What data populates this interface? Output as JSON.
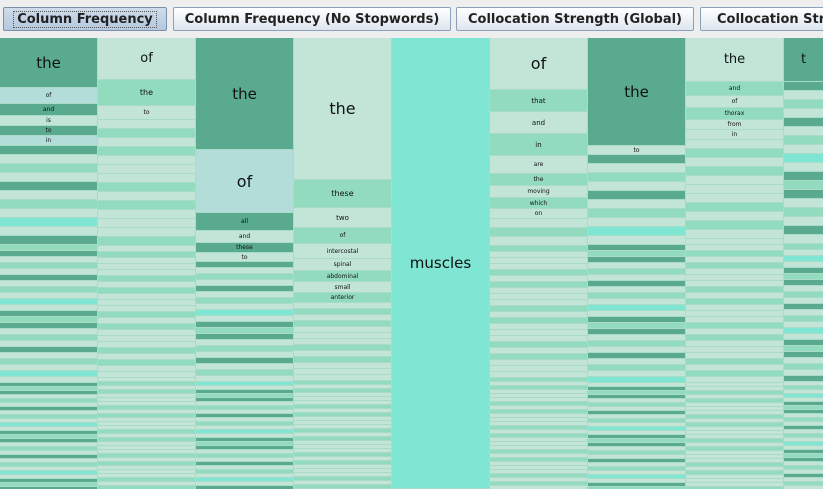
{
  "tabs": [
    {
      "label": "Column Frequency",
      "active": true
    },
    {
      "label": "Column Frequency (No Stopwords)",
      "active": false
    },
    {
      "label": "Collocation Strength (Global)",
      "active": false
    },
    {
      "label": "Collocation Stre",
      "active": false
    }
  ],
  "columns": [
    {
      "words": [
        "the",
        "of",
        "and",
        "is",
        "to",
        "in"
      ],
      "weights": [
        50,
        16,
        12,
        10,
        10,
        10
      ]
    },
    {
      "words": [
        "of",
        "the",
        "to"
      ],
      "weights": [
        42,
        26,
        14
      ]
    },
    {
      "words": [
        "the",
        "of",
        "all",
        "and",
        "these",
        "to"
      ],
      "weights": [
        112,
        63,
        18,
        12,
        10,
        9
      ]
    },
    {
      "words": [
        "the",
        "these",
        "two",
        "of",
        "intercostal",
        "spinal",
        "abdominal",
        "small",
        "anterior"
      ],
      "weights": [
        142,
        28,
        20,
        16,
        15,
        12,
        11,
        11,
        10
      ]
    },
    {
      "words": [
        "muscles"
      ],
      "weights": [
        451
      ]
    },
    {
      "words": [
        "of",
        "that",
        "and",
        "in",
        "are",
        "the",
        "moving",
        "which",
        "on"
      ],
      "weights": [
        52,
        22,
        22,
        22,
        18,
        12,
        12,
        11,
        10
      ]
    },
    {
      "words": [
        "the",
        "to"
      ],
      "weights": [
        108,
        9
      ]
    },
    {
      "words": [
        "the",
        "and",
        "of",
        "thorax",
        "from",
        "in"
      ],
      "weights": [
        44,
        14,
        12,
        12,
        10,
        10
      ]
    },
    {
      "words": [
        "t"
      ],
      "weights": [
        44
      ]
    }
  ],
  "colors": {
    "dark": "#5aaa90",
    "mid": "#93dbbf",
    "light": "#c2e5d8",
    "blue": "#b2ddd9",
    "focus": "#7fe6d3"
  }
}
